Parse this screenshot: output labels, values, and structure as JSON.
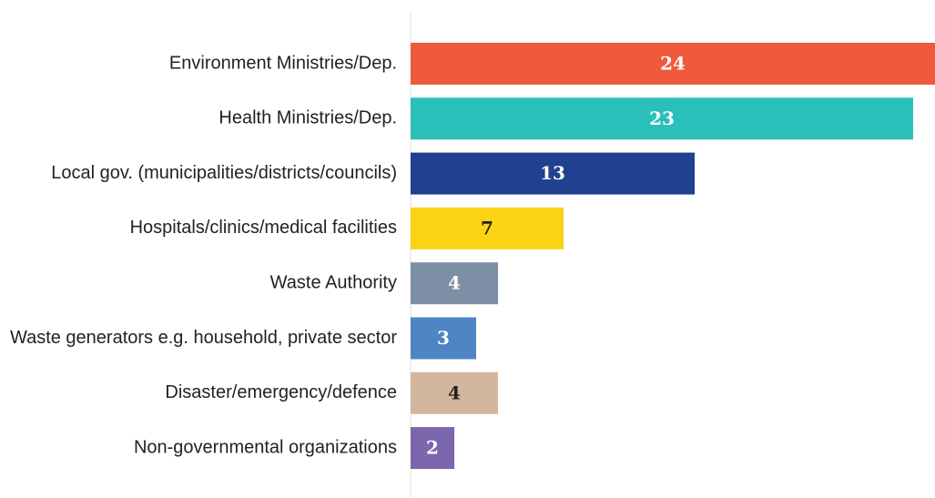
{
  "chart_data": {
    "type": "bar",
    "orientation": "horizontal",
    "categories": [
      "Environment Ministries/Dep.",
      "Health Ministries/Dep.",
      "Local gov. (municipalities/districts/councils)",
      "Hospitals/clinics/medical facilities",
      "Waste Authority",
      "Waste generators e.g. household, private sector",
      "Disaster/emergency/defence",
      "Non-governmental organizations"
    ],
    "values": [
      24,
      23,
      13,
      7,
      4,
      3,
      4,
      2
    ],
    "colors": [
      "#ef5a3c",
      "#2bbfb9",
      "#1f418f",
      "#fbd313",
      "#7d8fa5",
      "#4e85c4",
      "#d2b79c",
      "#7b67ad"
    ]
  }
}
